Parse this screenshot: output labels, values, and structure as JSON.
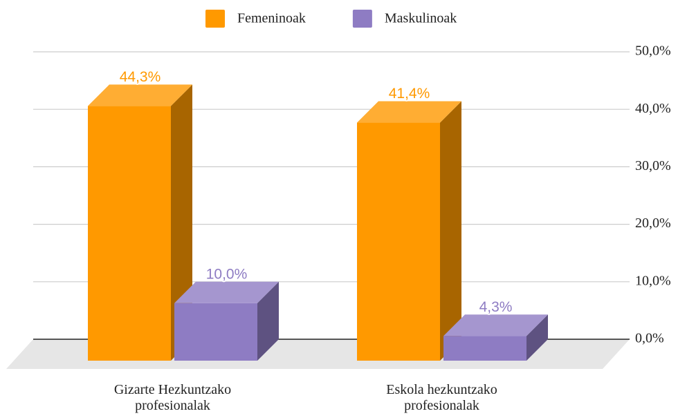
{
  "chart_data": {
    "type": "bar3d",
    "categories": [
      "Gizarte Hezkuntzako profesionalak",
      "Eskola hezkuntzako profesionalak"
    ],
    "series": [
      {
        "name": "Femeninoak",
        "color": "#ff9900",
        "values": [
          44.3,
          41.4
        ],
        "value_labels": [
          "44,3%",
          "41,4%"
        ]
      },
      {
        "name": "Maskulinoak",
        "color": "#8e7cc3",
        "values": [
          10.0,
          4.3
        ],
        "value_labels": [
          "10,0%",
          "4,3%"
        ]
      }
    ],
    "ylim": [
      0,
      50
    ],
    "yticks": [
      {
        "value": 0,
        "label": "0,0%"
      },
      {
        "value": 10,
        "label": "10,0%"
      },
      {
        "value": 20,
        "label": "20,0%"
      },
      {
        "value": 30,
        "label": "30,0%"
      },
      {
        "value": 40,
        "label": "40,0%"
      },
      {
        "value": 50,
        "label": "50,0%"
      }
    ],
    "grid": true,
    "legend": "top"
  }
}
